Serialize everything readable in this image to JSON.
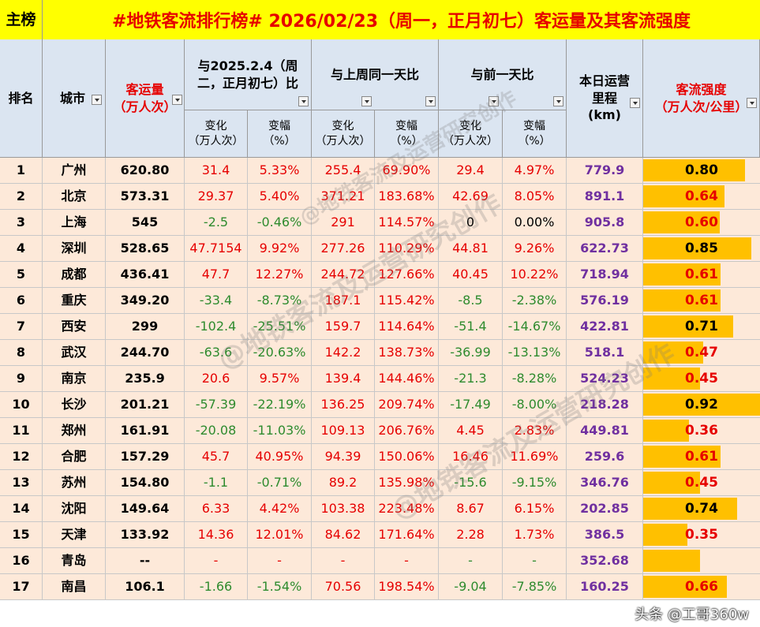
{
  "title": {
    "tag": "主榜",
    "main": "#地铁客流排行榜# 2026/02/23（周一，正月初七）客运量及其客流强度"
  },
  "headers": {
    "rank": "排名",
    "city": "城市",
    "volume": "客运量\n（万人次）",
    "group1": "与2025.2.4（周二，正月初七）比",
    "group2": "与上周同一天比",
    "group3": "与前一天比",
    "mileage": "本日运营\n里程\n(km)",
    "intensity": "客流强度\n（万人次/公里）",
    "change": "变化\n（万人次）",
    "pct": "变幅\n（%）"
  },
  "rows": [
    {
      "rank": "1",
      "city": "广州",
      "vol": "620.80",
      "c1": "31.4",
      "p1": "5.33%",
      "c2": "255.4",
      "p2": "69.90%",
      "c3": "29.4",
      "p3": "4.97%",
      "km": "779.9",
      "int": "0.80",
      "intv": 0.8,
      "s1": "r",
      "s2": "r",
      "s3": "r"
    },
    {
      "rank": "2",
      "city": "北京",
      "vol": "573.31",
      "c1": "29.37",
      "p1": "5.40%",
      "c2": "371.21",
      "p2": "183.68%",
      "c3": "42.69",
      "p3": "8.05%",
      "km": "891.1",
      "int": "0.64",
      "intv": 0.64,
      "s1": "r",
      "s2": "r",
      "s3": "r"
    },
    {
      "rank": "3",
      "city": "上海",
      "vol": "545",
      "c1": "-2.5",
      "p1": "-0.46%",
      "c2": "291",
      "p2": "114.57%",
      "c3": "0",
      "p3": "0.00%",
      "km": "905.8",
      "int": "0.60",
      "intv": 0.6,
      "s1": "g",
      "s2": "r",
      "s3": "k"
    },
    {
      "rank": "4",
      "city": "深圳",
      "vol": "528.65",
      "c1": "47.7154",
      "p1": "9.92%",
      "c2": "277.26",
      "p2": "110.29%",
      "c3": "44.81",
      "p3": "9.26%",
      "km": "622.73",
      "int": "0.85",
      "intv": 0.85,
      "s1": "r",
      "s2": "r",
      "s3": "r"
    },
    {
      "rank": "5",
      "city": "成都",
      "vol": "436.41",
      "c1": "47.7",
      "p1": "12.27%",
      "c2": "244.72",
      "p2": "127.66%",
      "c3": "40.45",
      "p3": "10.22%",
      "km": "718.94",
      "int": "0.61",
      "intv": 0.61,
      "s1": "r",
      "s2": "r",
      "s3": "r"
    },
    {
      "rank": "6",
      "city": "重庆",
      "vol": "349.20",
      "c1": "-33.4",
      "p1": "-8.73%",
      "c2": "187.1",
      "p2": "115.42%",
      "c3": "-8.5",
      "p3": "-2.38%",
      "km": "576.19",
      "int": "0.61",
      "intv": 0.61,
      "s1": "g",
      "s2": "r",
      "s3": "g"
    },
    {
      "rank": "7",
      "city": "西安",
      "vol": "299",
      "c1": "-102.4",
      "p1": "-25.51%",
      "c2": "159.7",
      "p2": "114.64%",
      "c3": "-51.4",
      "p3": "-14.67%",
      "km": "422.81",
      "int": "0.71",
      "intv": 0.71,
      "s1": "g",
      "s2": "r",
      "s3": "g"
    },
    {
      "rank": "8",
      "city": "武汉",
      "vol": "244.70",
      "c1": "-63.6",
      "p1": "-20.63%",
      "c2": "142.2",
      "p2": "138.73%",
      "c3": "-36.99",
      "p3": "-13.13%",
      "km": "518.1",
      "int": "0.47",
      "intv": 0.47,
      "s1": "g",
      "s2": "r",
      "s3": "g"
    },
    {
      "rank": "9",
      "city": "南京",
      "vol": "235.9",
      "c1": "20.6",
      "p1": "9.57%",
      "c2": "139.4",
      "p2": "144.46%",
      "c3": "-21.3",
      "p3": "-8.28%",
      "km": "524.23",
      "int": "0.45",
      "intv": 0.45,
      "s1": "r",
      "s2": "r",
      "s3": "g"
    },
    {
      "rank": "10",
      "city": "长沙",
      "vol": "201.21",
      "c1": "-57.39",
      "p1": "-22.19%",
      "c2": "136.25",
      "p2": "209.74%",
      "c3": "-17.49",
      "p3": "-8.00%",
      "km": "218.28",
      "int": "0.92",
      "intv": 0.92,
      "s1": "g",
      "s2": "r",
      "s3": "g"
    },
    {
      "rank": "11",
      "city": "郑州",
      "vol": "161.91",
      "c1": "-20.08",
      "p1": "-11.03%",
      "c2": "109.13",
      "p2": "206.76%",
      "c3": "4.45",
      "p3": "2.83%",
      "km": "449.81",
      "int": "0.36",
      "intv": 0.36,
      "s1": "g",
      "s2": "r",
      "s3": "r"
    },
    {
      "rank": "12",
      "city": "合肥",
      "vol": "157.29",
      "c1": "45.7",
      "p1": "40.95%",
      "c2": "94.39",
      "p2": "150.06%",
      "c3": "16.46",
      "p3": "11.69%",
      "km": "259.6",
      "int": "0.61",
      "intv": 0.61,
      "s1": "r",
      "s2": "r",
      "s3": "r"
    },
    {
      "rank": "13",
      "city": "苏州",
      "vol": "154.80",
      "c1": "-1.1",
      "p1": "-0.71%",
      "c2": "89.2",
      "p2": "135.98%",
      "c3": "-15.6",
      "p3": "-9.15%",
      "km": "346.76",
      "int": "0.45",
      "intv": 0.45,
      "s1": "g",
      "s2": "r",
      "s3": "g"
    },
    {
      "rank": "14",
      "city": "沈阳",
      "vol": "149.64",
      "c1": "6.33",
      "p1": "4.42%",
      "c2": "103.38",
      "p2": "223.48%",
      "c3": "8.67",
      "p3": "6.15%",
      "km": "202.85",
      "int": "0.74",
      "intv": 0.74,
      "s1": "r",
      "s2": "r",
      "s3": "r"
    },
    {
      "rank": "15",
      "city": "天津",
      "vol": "133.92",
      "c1": "14.36",
      "p1": "12.01%",
      "c2": "84.62",
      "p2": "171.64%",
      "c3": "2.28",
      "p3": "1.73%",
      "km": "386.5",
      "int": "0.35",
      "intv": 0.35,
      "s1": "r",
      "s2": "r",
      "s3": "r"
    },
    {
      "rank": "16",
      "city": "青岛",
      "vol": "--",
      "c1": "-",
      "p1": "-",
      "c2": "-",
      "p2": "-",
      "c3": "-",
      "p3": "-",
      "km": "352.68",
      "int": "",
      "intv": 0.45,
      "s1": "r",
      "s2": "r",
      "s3": "g"
    },
    {
      "rank": "17",
      "city": "南昌",
      "vol": "106.1",
      "c1": "-1.66",
      "p1": "-1.54%",
      "c2": "70.56",
      "p2": "198.54%",
      "c3": "-9.04",
      "p3": "-7.85%",
      "km": "160.25",
      "int": "0.66",
      "intv": 0.66,
      "s1": "g",
      "s2": "r",
      "s3": "g"
    }
  ],
  "watermark": "@地铁客流及运营研究创作",
  "footer": "头条 @工哥360w",
  "colors": {
    "title_bg": "#ffff00",
    "header_bg": "#dbe5f1",
    "row_bg": "#fde9d9",
    "bar": "#ffc000",
    "red": "#e60000",
    "green": "#2e8b2e",
    "purple": "#7030a0"
  }
}
